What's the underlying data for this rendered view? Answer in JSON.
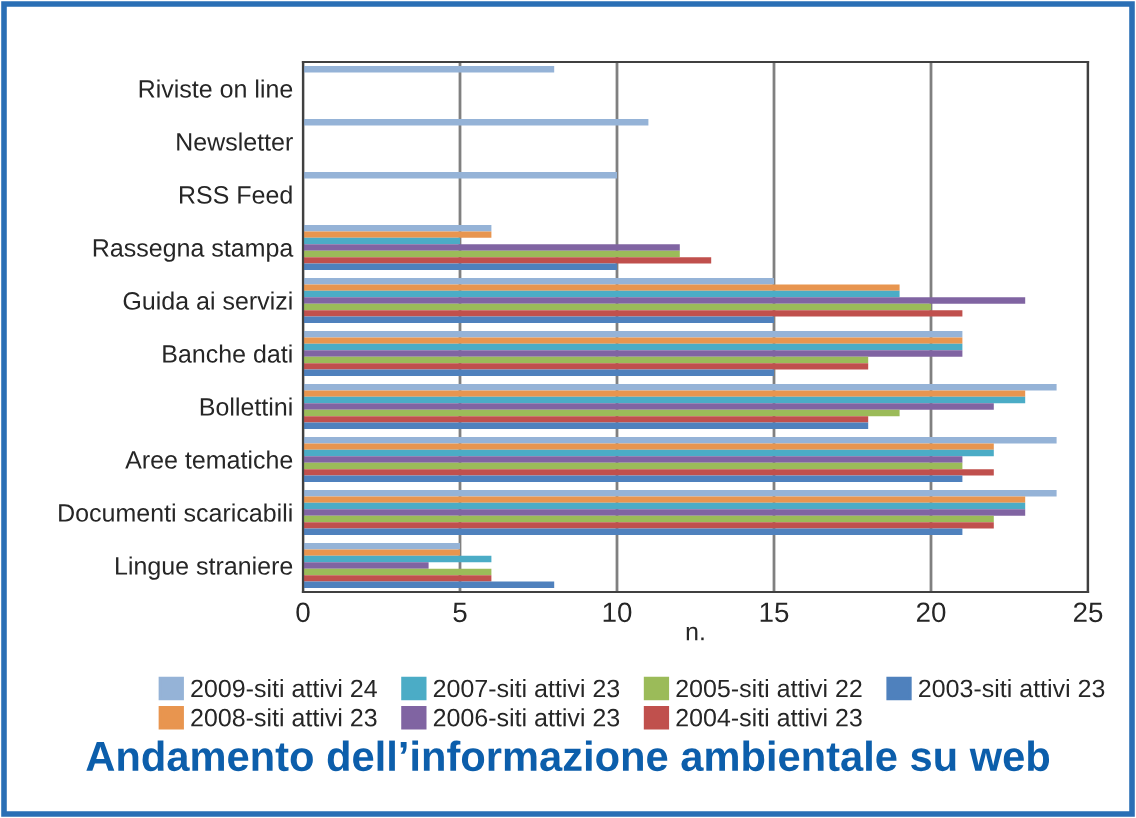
{
  "chart_data": {
    "type": "bar",
    "orientation": "horizontal",
    "title": "Andamento dell’informazione ambientale su web",
    "xlabel": "n.",
    "categories": [
      "Riviste on line",
      "Newsletter",
      "RSS Feed",
      "Rassegna stampa",
      "Guida ai servizi",
      "Banche dati",
      "Bollettini",
      "Aree tematiche",
      "Documenti scaricabili",
      "Lingue straniere"
    ],
    "series": [
      {
        "name": "2009-siti attivi 24",
        "color": "#95b3d7",
        "values": [
          8,
          11,
          10,
          6,
          15,
          21,
          24,
          24,
          24,
          5
        ]
      },
      {
        "name": "2008-siti attivi 23",
        "color": "#e8954f",
        "values": [
          null,
          null,
          null,
          6,
          19,
          21,
          23,
          22,
          23,
          5
        ]
      },
      {
        "name": "2007-siti attivi 23",
        "color": "#4bacc6",
        "values": [
          null,
          null,
          null,
          5,
          19,
          21,
          23,
          22,
          23,
          6
        ]
      },
      {
        "name": "2006-siti attivi 23",
        "color": "#8064a2",
        "values": [
          null,
          null,
          null,
          12,
          23,
          21,
          22,
          21,
          23,
          4
        ]
      },
      {
        "name": "2005-siti attivi 22",
        "color": "#9bbb59",
        "values": [
          null,
          null,
          null,
          12,
          20,
          18,
          19,
          21,
          22,
          6
        ]
      },
      {
        "name": "2004-siti attivi 23",
        "color": "#c0504d",
        "values": [
          null,
          null,
          null,
          13,
          21,
          18,
          18,
          22,
          22,
          6
        ]
      },
      {
        "name": "2003-siti attivi 23",
        "color": "#4f81bd",
        "values": [
          null,
          null,
          null,
          10,
          15,
          15,
          18,
          21,
          21,
          8
        ]
      }
    ],
    "xlim": [
      0,
      25
    ],
    "xticks": [
      0,
      5,
      10,
      15,
      20,
      25
    ],
    "grid": "x",
    "legend": "bottom"
  }
}
